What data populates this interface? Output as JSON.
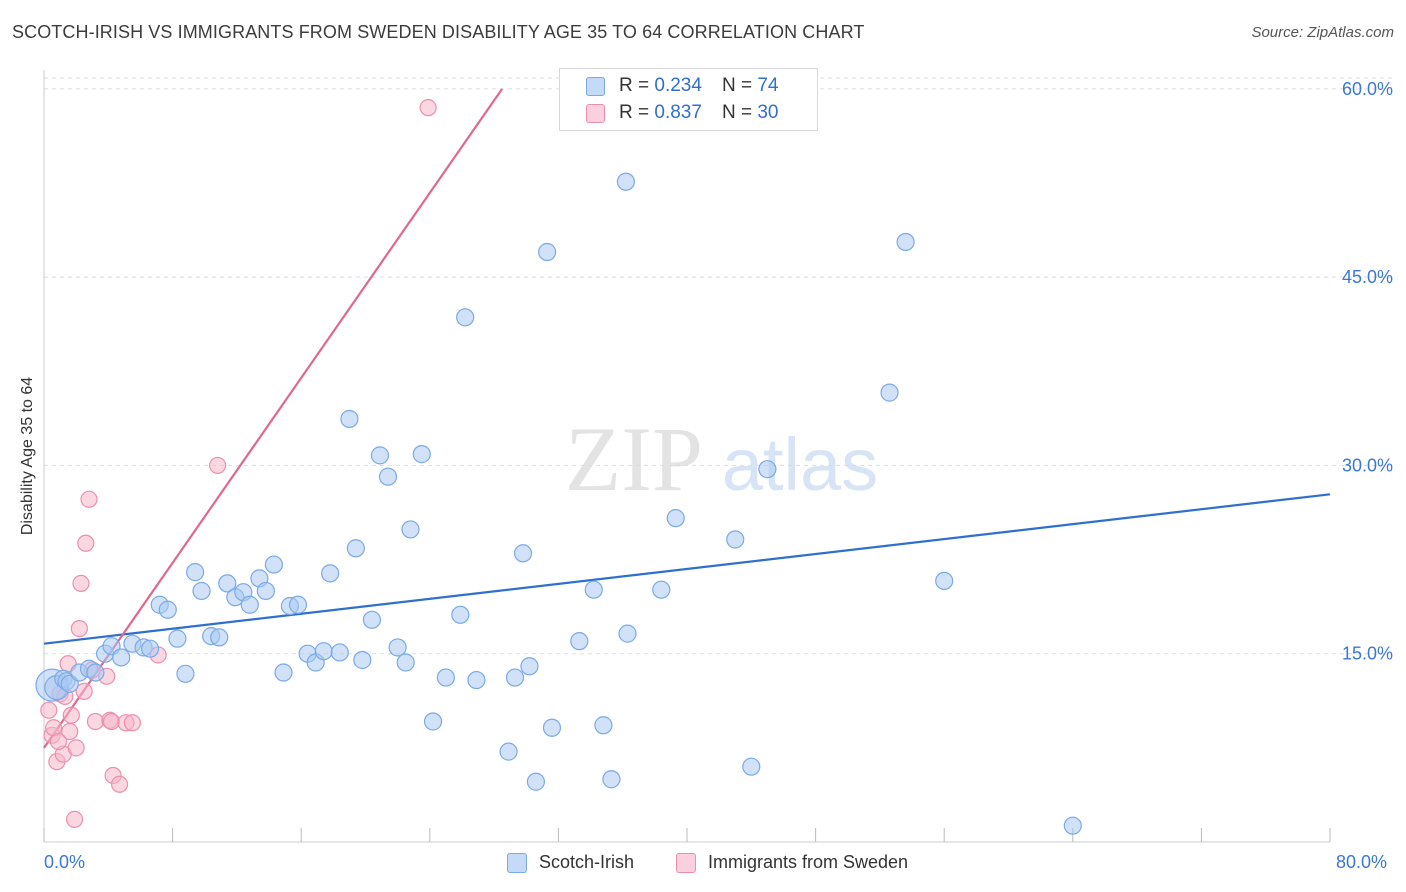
{
  "title": "SCOTCH-IRISH VS IMMIGRANTS FROM SWEDEN DISABILITY AGE 35 TO 64 CORRELATION CHART",
  "source": "Source: ZipAtlas.com",
  "watermark": {
    "zip": "ZIP",
    "atlas": "atlas"
  },
  "legend_top": [
    {
      "r_label": "R =",
      "r_value": "0.234",
      "n_label": "N =",
      "n_value": "74",
      "color": "#a9c9f2"
    },
    {
      "r_label": "R =",
      "r_value": "0.837",
      "n_label": "N =",
      "n_value": "30",
      "color": "#f7b6cb"
    }
  ],
  "legend_bottom": [
    {
      "label": "Scotch-Irish",
      "color": "#a9c9f2"
    },
    {
      "label": "Immigrants from Sweden",
      "color": "#f7b6cb"
    }
  ],
  "chart_data": {
    "type": "scatter",
    "title": "SCOTCH-IRISH VS IMMIGRANTS FROM SWEDEN DISABILITY AGE 35 TO 64 CORRELATION CHART",
    "xlabel": "",
    "ylabel": "Disability Age 35 to 64",
    "xlim": [
      0,
      80
    ],
    "ylim": [
      0,
      61.5
    ],
    "x_tick_labels": [
      "0.0%",
      "80.0%"
    ],
    "y_ticks": [
      15,
      30,
      45,
      60
    ],
    "y_tick_labels": [
      "15.0%",
      "30.0%",
      "45.0%",
      "60.0%"
    ],
    "grid": true,
    "colors": {
      "blue_fill": "#a9c9f2",
      "blue_stroke": "#7aaae6",
      "blue_line": "#2f6fce",
      "pink_fill": "#f7b6cb",
      "pink_stroke": "#ec8fae",
      "pink_line": "#e0688f",
      "axis_label": "#3a78d4"
    },
    "series": [
      {
        "name": "Scotch-Irish",
        "trend": {
          "x": [
            0,
            80
          ],
          "y": [
            15.8,
            27.7
          ]
        },
        "points": [
          [
            0.5,
            12.5
          ],
          [
            0.8,
            12.3
          ],
          [
            1.2,
            13.0
          ],
          [
            1.4,
            12.8
          ],
          [
            1.6,
            12.6
          ],
          [
            2.2,
            13.5
          ],
          [
            2.8,
            13.8
          ],
          [
            3.2,
            13.5
          ],
          [
            3.8,
            15.0
          ],
          [
            4.2,
            15.6
          ],
          [
            4.8,
            14.7
          ],
          [
            5.5,
            15.8
          ],
          [
            6.2,
            15.5
          ],
          [
            6.6,
            15.4
          ],
          [
            7.2,
            18.9
          ],
          [
            7.7,
            18.5
          ],
          [
            8.3,
            16.2
          ],
          [
            8.8,
            13.4
          ],
          [
            9.4,
            21.5
          ],
          [
            9.8,
            20.0
          ],
          [
            10.4,
            16.4
          ],
          [
            10.9,
            16.3
          ],
          [
            11.4,
            20.6
          ],
          [
            11.9,
            19.5
          ],
          [
            12.4,
            19.9
          ],
          [
            12.8,
            18.9
          ],
          [
            13.4,
            21.0
          ],
          [
            13.8,
            20.0
          ],
          [
            14.3,
            22.1
          ],
          [
            14.9,
            13.5
          ],
          [
            15.3,
            18.8
          ],
          [
            15.8,
            18.9
          ],
          [
            16.4,
            15.0
          ],
          [
            16.9,
            14.3
          ],
          [
            17.4,
            15.2
          ],
          [
            17.8,
            21.4
          ],
          [
            18.4,
            15.1
          ],
          [
            19.0,
            33.7
          ],
          [
            19.4,
            23.4
          ],
          [
            19.8,
            14.5
          ],
          [
            20.4,
            17.7
          ],
          [
            20.9,
            30.8
          ],
          [
            21.4,
            29.1
          ],
          [
            22.0,
            15.5
          ],
          [
            22.5,
            14.3
          ],
          [
            22.8,
            24.9
          ],
          [
            23.5,
            30.9
          ],
          [
            24.2,
            9.6
          ],
          [
            25.0,
            13.1
          ],
          [
            25.9,
            18.1
          ],
          [
            26.2,
            41.8
          ],
          [
            26.9,
            12.9
          ],
          [
            28.9,
            7.2
          ],
          [
            29.3,
            13.1
          ],
          [
            29.8,
            23.0
          ],
          [
            30.2,
            14.0
          ],
          [
            30.6,
            4.8
          ],
          [
            31.3,
            47.0
          ],
          [
            31.6,
            9.1
          ],
          [
            33.3,
            16.0
          ],
          [
            34.2,
            20.1
          ],
          [
            34.8,
            9.3
          ],
          [
            35.3,
            5.0
          ],
          [
            36.2,
            52.6
          ],
          [
            36.3,
            16.6
          ],
          [
            38.4,
            20.1
          ],
          [
            39.3,
            25.8
          ],
          [
            43.0,
            24.1
          ],
          [
            44.0,
            6.0
          ],
          [
            45.0,
            29.7
          ],
          [
            52.6,
            35.8
          ],
          [
            53.6,
            47.8
          ],
          [
            56.0,
            20.8
          ],
          [
            64.0,
            1.3
          ]
        ]
      },
      {
        "name": "Immigrants from Sweden",
        "trend": {
          "x": [
            0,
            28.5
          ],
          "y": [
            7.5,
            60.0
          ]
        },
        "points": [
          [
            0.3,
            10.5
          ],
          [
            0.5,
            8.5
          ],
          [
            0.6,
            9.1
          ],
          [
            0.8,
            6.4
          ],
          [
            1.0,
            11.8
          ],
          [
            1.2,
            7.0
          ],
          [
            1.3,
            11.6
          ],
          [
            1.5,
            14.2
          ],
          [
            1.6,
            8.8
          ],
          [
            1.7,
            10.1
          ],
          [
            1.9,
            1.8
          ],
          [
            2.0,
            7.5
          ],
          [
            2.2,
            17.0
          ],
          [
            2.3,
            20.6
          ],
          [
            2.6,
            23.8
          ],
          [
            2.8,
            27.3
          ],
          [
            3.0,
            13.7
          ],
          [
            3.2,
            9.6
          ],
          [
            3.9,
            13.2
          ],
          [
            4.1,
            9.7
          ],
          [
            4.2,
            9.6
          ],
          [
            4.3,
            5.3
          ],
          [
            4.7,
            4.6
          ],
          [
            5.1,
            9.5
          ],
          [
            5.5,
            9.5
          ],
          [
            7.1,
            14.9
          ],
          [
            10.8,
            30.0
          ],
          [
            23.9,
            58.5
          ],
          [
            2.5,
            12.0
          ],
          [
            0.9,
            8.0
          ]
        ]
      }
    ]
  }
}
